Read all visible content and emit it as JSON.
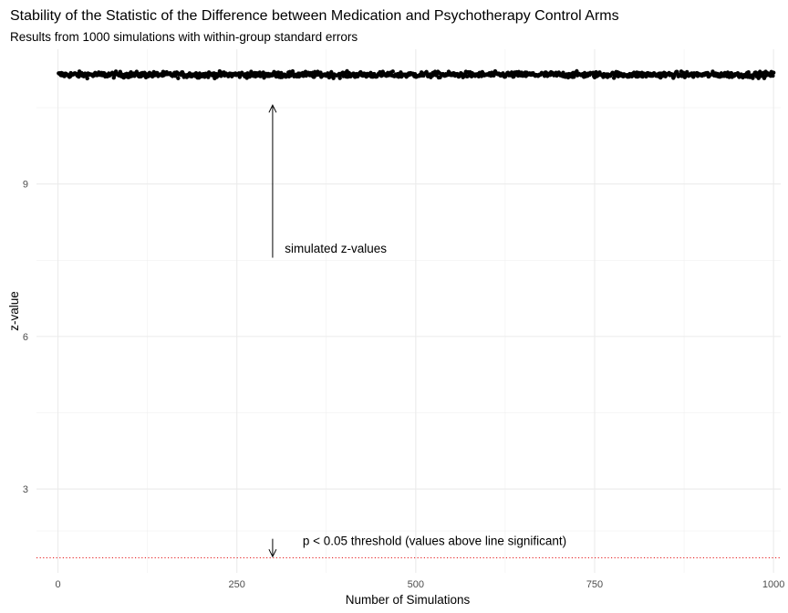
{
  "chart_data": {
    "type": "scatter",
    "title": "Stability of the Statistic of the Difference between Medication and Psychotherapy Control Arms",
    "subtitle": "Results from 1000 simulations with within-group standard errors",
    "xlabel": "Number of Simulations",
    "ylabel": "z-value",
    "xlim": [
      -30,
      1010
    ],
    "ylim": [
      1.35,
      11.65
    ],
    "x_ticks": [
      0,
      250,
      500,
      750,
      1000
    ],
    "x_tick_labels": [
      "0",
      "250",
      "500",
      "750",
      "1000"
    ],
    "y_ticks": [
      3,
      6,
      9
    ],
    "y_tick_labels": [
      "3",
      "6",
      "9"
    ],
    "grid": true,
    "series": [
      {
        "n_points": 1000,
        "x_range": [
          1,
          1000
        ],
        "y_center": 11.15,
        "y_spread": 0.05,
        "color": "#000000"
      }
    ],
    "reference_line": {
      "y": 1.645,
      "style": "dotted",
      "color": "#e41a1c"
    },
    "annotations": [
      {
        "text": "simulated z-values",
        "x": 317,
        "y": 7.65,
        "arrow_x": 300,
        "arrow_from": 7.55,
        "arrow_to": 10.55
      },
      {
        "text": "p < 0.05 threshold (values above line significant)",
        "x": 342,
        "y": 1.9,
        "arrow_x": 300,
        "arrow_from": 2.02,
        "arrow_to": 1.67
      }
    ]
  }
}
